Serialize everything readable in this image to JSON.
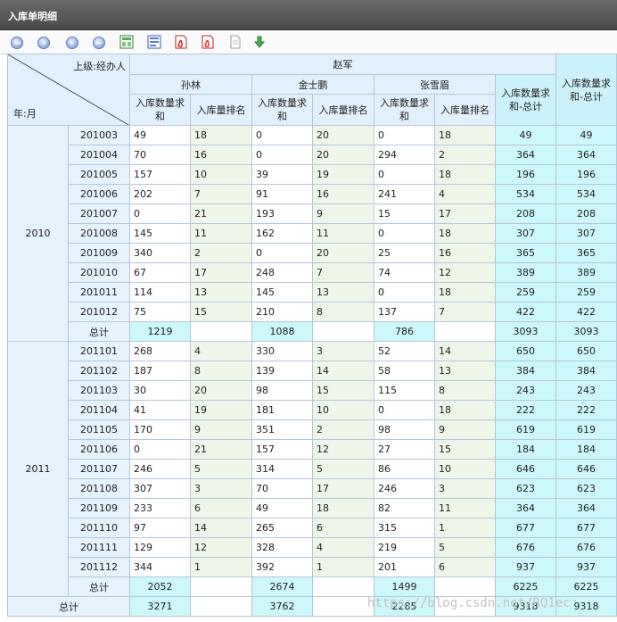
{
  "window": {
    "title": "入库单明细"
  },
  "toolbar": [
    {
      "name": "first-page-button",
      "glyph": "⏮"
    },
    {
      "name": "prev-page-button",
      "glyph": "◀"
    },
    {
      "name": "next-page-button",
      "glyph": "▶"
    },
    {
      "name": "last-page-button",
      "glyph": "⏭"
    },
    {
      "name": "export-excel-button",
      "icon": "excel-icon"
    },
    {
      "name": "export-word-button",
      "icon": "word-icon"
    },
    {
      "name": "export-pdf-button",
      "icon": "pdf-icon"
    },
    {
      "name": "print-pdf-button",
      "icon": "pdf-print-icon"
    },
    {
      "name": "export-text-button",
      "icon": "text-icon"
    },
    {
      "name": "download-button",
      "icon": "download-arrow-icon"
    }
  ],
  "header": {
    "col_axis": "上级:经办人",
    "row_axis": "年:月",
    "manager": "赵军",
    "staff": [
      "孙林",
      "金士鹏",
      "张雪眉"
    ],
    "sum_label": "入库数量求和",
    "rank_label": "入库量排名",
    "sub_total_label": "入库数量求和-总计",
    "grand_total_label": "入库数量求和-总计"
  },
  "years": [
    {
      "year": "2010",
      "rows": [
        [
          "201003",
          "49",
          "18",
          "0",
          "20",
          "0",
          "18",
          "49",
          "49"
        ],
        [
          "201004",
          "70",
          "16",
          "0",
          "20",
          "294",
          "2",
          "364",
          "364"
        ],
        [
          "201005",
          "157",
          "10",
          "39",
          "19",
          "0",
          "18",
          "196",
          "196"
        ],
        [
          "201006",
          "202",
          "7",
          "91",
          "16",
          "241",
          "4",
          "534",
          "534"
        ],
        [
          "201007",
          "0",
          "21",
          "193",
          "9",
          "15",
          "17",
          "208",
          "208"
        ],
        [
          "201008",
          "145",
          "11",
          "162",
          "11",
          "0",
          "18",
          "307",
          "307"
        ],
        [
          "201009",
          "340",
          "2",
          "0",
          "20",
          "25",
          "16",
          "365",
          "365"
        ],
        [
          "201010",
          "67",
          "17",
          "248",
          "7",
          "74",
          "12",
          "389",
          "389"
        ],
        [
          "201011",
          "114",
          "13",
          "145",
          "13",
          "0",
          "18",
          "259",
          "259"
        ],
        [
          "201012",
          "75",
          "15",
          "210",
          "8",
          "137",
          "7",
          "422",
          "422"
        ]
      ],
      "total": [
        "总计",
        "1219",
        "",
        "1088",
        "",
        "786",
        "",
        "3093",
        "3093"
      ]
    },
    {
      "year": "2011",
      "rows": [
        [
          "201101",
          "268",
          "4",
          "330",
          "3",
          "52",
          "14",
          "650",
          "650"
        ],
        [
          "201102",
          "187",
          "8",
          "139",
          "14",
          "58",
          "13",
          "384",
          "384"
        ],
        [
          "201103",
          "30",
          "20",
          "98",
          "15",
          "115",
          "8",
          "243",
          "243"
        ],
        [
          "201104",
          "41",
          "19",
          "181",
          "10",
          "0",
          "18",
          "222",
          "222"
        ],
        [
          "201105",
          "170",
          "9",
          "351",
          "2",
          "98",
          "9",
          "619",
          "619"
        ],
        [
          "201106",
          "0",
          "21",
          "157",
          "12",
          "27",
          "15",
          "184",
          "184"
        ],
        [
          "201107",
          "246",
          "5",
          "314",
          "5",
          "86",
          "10",
          "646",
          "646"
        ],
        [
          "201108",
          "307",
          "3",
          "70",
          "17",
          "246",
          "3",
          "623",
          "623"
        ],
        [
          "201109",
          "233",
          "6",
          "49",
          "18",
          "82",
          "11",
          "364",
          "364"
        ],
        [
          "201110",
          "97",
          "14",
          "265",
          "6",
          "315",
          "1",
          "677",
          "677"
        ],
        [
          "201111",
          "129",
          "12",
          "328",
          "4",
          "219",
          "5",
          "676",
          "676"
        ],
        [
          "201112",
          "344",
          "1",
          "392",
          "1",
          "201",
          "6",
          "937",
          "937"
        ]
      ],
      "total": [
        "总计",
        "2052",
        "",
        "2674",
        "",
        "1499",
        "",
        "6225",
        "6225"
      ]
    }
  ],
  "grand_total": [
    "总计",
    "3271",
    "",
    "3762",
    "",
    "2285",
    "",
    "9318",
    "9318"
  ],
  "watermark": "https://blog.csdn.net/RQ1ec"
}
